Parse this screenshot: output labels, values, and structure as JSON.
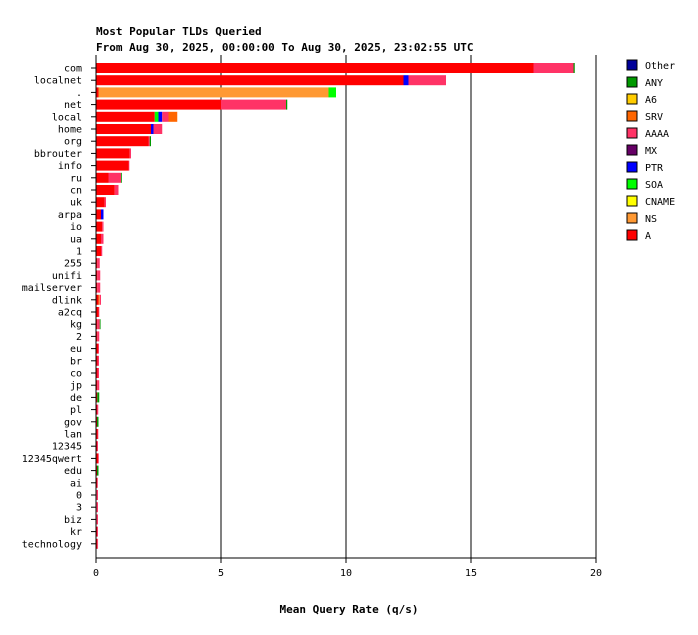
{
  "chart_data": {
    "type": "bar",
    "title": "Most Popular TLDs Queried",
    "subtitle": "From Aug 30, 2025, 00:00:00 To Aug 30, 2025, 23:02:55 UTC",
    "xlabel": "Mean Query Rate (q/s)",
    "ylabel": "",
    "xlim": [
      0,
      20
    ],
    "xticks": [
      0,
      5,
      10,
      15,
      20
    ],
    "grid": "vertical",
    "legend_position": "right",
    "categories": [
      "com",
      "localnet",
      ".",
      "net",
      "local",
      "home",
      "org",
      "bbrouter",
      "info",
      "ru",
      "cn",
      "uk",
      "arpa",
      "io",
      "ua",
      "1",
      "255",
      "unifi",
      "mailserver",
      "dlink",
      "a2cq",
      "kg",
      "2",
      "eu",
      "br",
      "co",
      "jp",
      "de",
      "pl",
      "gov",
      "lan",
      "12345",
      "12345qwert",
      "edu",
      "ai",
      "0",
      "3",
      "biz",
      "kr",
      "technology"
    ],
    "series": [
      {
        "name": "A",
        "color": "#ff0000",
        "values": [
          17.5,
          12.3,
          0.1,
          5.0,
          2.35,
          2.2,
          2.1,
          1.35,
          1.3,
          0.5,
          0.75,
          0.35,
          0.2,
          0.25,
          0.2,
          0.2,
          0.05,
          0.05,
          0.05,
          0.1,
          0.1,
          0.05,
          0.05,
          0.08,
          0.06,
          0.06,
          0.05,
          0.05,
          0.04,
          0.04,
          0.06,
          0.04,
          0.08,
          0.04,
          0.04,
          0.03,
          0.03,
          0.03,
          0.04,
          0.05
        ]
      },
      {
        "name": "NS",
        "color": "#ff9933",
        "values": [
          0,
          0,
          9.2,
          0,
          0,
          0,
          0,
          0,
          0,
          0,
          0,
          0,
          0,
          0,
          0,
          0,
          0,
          0,
          0,
          0.05,
          0,
          0,
          0,
          0,
          0,
          0,
          0,
          0,
          0,
          0,
          0,
          0,
          0,
          0,
          0,
          0,
          0,
          0,
          0,
          0
        ]
      },
      {
        "name": "CNAME",
        "color": "#ffff00",
        "values": [
          0,
          0,
          0,
          0,
          0,
          0,
          0,
          0,
          0,
          0,
          0,
          0,
          0,
          0,
          0,
          0,
          0,
          0,
          0,
          0,
          0,
          0,
          0,
          0,
          0,
          0,
          0,
          0,
          0,
          0,
          0,
          0,
          0,
          0,
          0,
          0,
          0,
          0,
          0,
          0
        ]
      },
      {
        "name": "SOA",
        "color": "#00ff00",
        "values": [
          0,
          0,
          0.3,
          0,
          0.15,
          0,
          0,
          0,
          0,
          0,
          0,
          0,
          0,
          0,
          0,
          0,
          0,
          0,
          0,
          0,
          0,
          0,
          0,
          0,
          0,
          0,
          0,
          0,
          0,
          0,
          0,
          0,
          0,
          0,
          0,
          0,
          0,
          0,
          0,
          0
        ]
      },
      {
        "name": "PTR",
        "color": "#0000ff",
        "values": [
          0,
          0.2,
          0,
          0,
          0.15,
          0.1,
          0,
          0,
          0,
          0,
          0,
          0,
          0.1,
          0,
          0,
          0,
          0,
          0,
          0,
          0,
          0,
          0,
          0,
          0,
          0,
          0,
          0,
          0,
          0,
          0,
          0,
          0,
          0,
          0,
          0,
          0,
          0,
          0,
          0,
          0
        ]
      },
      {
        "name": "MX",
        "color": "#660066",
        "values": [
          0,
          0,
          0,
          0,
          0,
          0,
          0,
          0,
          0,
          0,
          0,
          0,
          0,
          0,
          0,
          0,
          0,
          0,
          0,
          0,
          0,
          0,
          0,
          0,
          0,
          0,
          0,
          0,
          0,
          0,
          0,
          0,
          0,
          0,
          0,
          0,
          0,
          0,
          0,
          0
        ]
      },
      {
        "name": "AAAA",
        "color": "#ff3366",
        "values": [
          1.6,
          1.5,
          0,
          2.6,
          0.25,
          0.35,
          0.05,
          0.05,
          0.03,
          0.5,
          0.15,
          0.05,
          0,
          0.05,
          0.1,
          0.05,
          0.1,
          0.12,
          0.12,
          0.05,
          0.02,
          0.1,
          0.08,
          0.04,
          0.06,
          0.06,
          0.08,
          0,
          0.05,
          0,
          0.02,
          0.04,
          0.02,
          0,
          0.03,
          0.05,
          0.05,
          0.05,
          0.04,
          0.03
        ]
      },
      {
        "name": "SRV",
        "color": "#ff6600",
        "values": [
          0,
          0,
          0,
          0,
          0.35,
          0,
          0,
          0,
          0,
          0,
          0,
          0,
          0,
          0,
          0,
          0,
          0,
          0,
          0,
          0,
          0,
          0,
          0,
          0,
          0,
          0,
          0,
          0,
          0,
          0,
          0,
          0,
          0,
          0,
          0,
          0,
          0,
          0,
          0,
          0
        ]
      },
      {
        "name": "A6",
        "color": "#ffcc00",
        "values": [
          0,
          0,
          0,
          0,
          0,
          0,
          0,
          0,
          0,
          0,
          0,
          0,
          0,
          0,
          0,
          0,
          0,
          0,
          0,
          0,
          0,
          0,
          0,
          0,
          0,
          0,
          0,
          0,
          0,
          0,
          0,
          0,
          0,
          0,
          0,
          0,
          0,
          0,
          0,
          0
        ]
      },
      {
        "name": "ANY",
        "color": "#009900",
        "values": [
          0.05,
          0,
          0,
          0.05,
          0,
          0,
          0.05,
          0,
          0,
          0.02,
          0,
          0,
          0,
          0,
          0,
          0,
          0,
          0,
          0,
          0,
          0,
          0.02,
          0,
          0,
          0,
          0,
          0,
          0.08,
          0,
          0.06,
          0,
          0,
          0,
          0.06,
          0,
          0,
          0,
          0,
          0,
          0
        ]
      },
      {
        "name": "Other",
        "color": "#000099",
        "values": [
          0,
          0,
          0,
          0,
          0,
          0,
          0,
          0,
          0,
          0,
          0,
          0,
          0,
          0,
          0,
          0,
          0,
          0,
          0,
          0,
          0,
          0,
          0,
          0,
          0,
          0,
          0,
          0,
          0,
          0,
          0,
          0,
          0,
          0,
          0,
          0,
          0,
          0,
          0,
          0
        ]
      }
    ],
    "legend_order": [
      "Other",
      "ANY",
      "A6",
      "SRV",
      "AAAA",
      "MX",
      "PTR",
      "SOA",
      "CNAME",
      "NS",
      "A"
    ]
  }
}
